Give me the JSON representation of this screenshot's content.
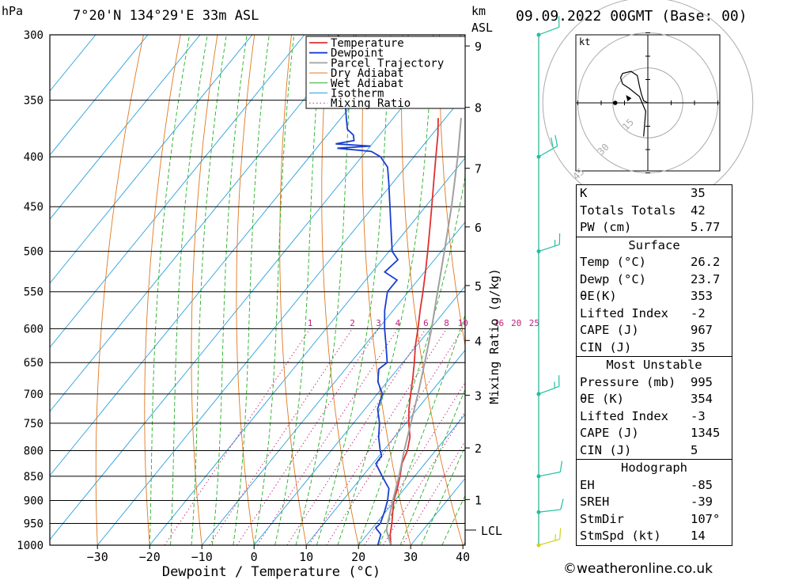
{
  "header": {
    "unit_hpa": "hPa",
    "location": "7°20'N 134°29'E 33m ASL",
    "unit_km": "km",
    "unit_asl": "ASL",
    "datetime": "09.09.2022 00GMT (Base: 00)"
  },
  "credit": "©weatheronline.co.uk",
  "colors": {
    "temperature": "#e03030",
    "dewpoint": "#1a3ed0",
    "parcel": "#a0a0a0",
    "dry_adiabat": "#e07820",
    "wet_adiabat": "#22b022",
    "isotherm": "#2aa0e0",
    "mixing_ratio": "#c0207a",
    "wind": "#20c0a0"
  },
  "chart_data": {
    "type": "line",
    "xlabel": "Dewpoint / Temperature (°C)",
    "ylabel": "hPa",
    "xlim": [
      -40,
      40
    ],
    "ylim": [
      1000,
      300
    ],
    "x_ticks": [
      -30,
      -20,
      -10,
      0,
      10,
      20,
      30,
      40
    ],
    "pressure_levels": [
      300,
      350,
      400,
      450,
      500,
      550,
      600,
      650,
      700,
      750,
      800,
      850,
      900,
      950,
      1000
    ],
    "km_ticks": [
      {
        "label": "1",
        "p": 898
      },
      {
        "label": "2",
        "p": 795
      },
      {
        "label": "3",
        "p": 702
      },
      {
        "label": "4",
        "p": 617
      },
      {
        "label": "5",
        "p": 542
      },
      {
        "label": "6",
        "p": 472
      },
      {
        "label": "7",
        "p": 411
      },
      {
        "label": "8",
        "p": 356
      },
      {
        "label": "9",
        "p": 308
      }
    ],
    "lcl": {
      "label": "LCL",
      "p": 965
    },
    "mixing_ratio_axis_label": "Mixing Ratio (g/kg)",
    "mixing_ratios": [
      1,
      2,
      3,
      4,
      6,
      8,
      10,
      16,
      20,
      25
    ],
    "legend": [
      "Temperature",
      "Dewpoint",
      "Parcel Trajectory",
      "Dry Adiabat",
      "Wet Adiabat",
      "Isotherm",
      "Mixing Ratio"
    ],
    "legend_position": "top-right",
    "series": [
      {
        "name": "Temperature",
        "points": [
          [
            1000,
            26.2
          ],
          [
            975,
            24.4
          ],
          [
            950,
            23.0
          ],
          [
            925,
            21.4
          ],
          [
            900,
            19.8
          ],
          [
            875,
            18.6
          ],
          [
            850,
            17.2
          ],
          [
            825,
            15.6
          ],
          [
            800,
            14.6
          ],
          [
            775,
            13.0
          ],
          [
            750,
            10.6
          ],
          [
            725,
            8.4
          ],
          [
            700,
            6.4
          ],
          [
            675,
            4.4
          ],
          [
            650,
            2.2
          ],
          [
            625,
            -0.2
          ],
          [
            600,
            -2.4
          ],
          [
            575,
            -4.8
          ],
          [
            550,
            -7.2
          ],
          [
            525,
            -9.8
          ],
          [
            500,
            -12.6
          ],
          [
            475,
            -15.6
          ],
          [
            450,
            -18.8
          ],
          [
            425,
            -22.2
          ],
          [
            400,
            -25.8
          ],
          [
            380,
            -28.8
          ],
          [
            365,
            -31.4
          ]
        ]
      },
      {
        "name": "Dewpoint",
        "points": [
          [
            1000,
            23.7
          ],
          [
            975,
            22.6
          ],
          [
            960,
            20.6
          ],
          [
            950,
            20.8
          ],
          [
            925,
            19.8
          ],
          [
            900,
            18.6
          ],
          [
            875,
            17.0
          ],
          [
            850,
            13.8
          ],
          [
            825,
            10.6
          ],
          [
            810,
            10.5
          ],
          [
            800,
            9.4
          ],
          [
            775,
            7.0
          ],
          [
            750,
            5.0
          ],
          [
            725,
            2.4
          ],
          [
            700,
            1.0
          ],
          [
            680,
            -1.8
          ],
          [
            660,
            -3.6
          ],
          [
            650,
            -3.0
          ],
          [
            625,
            -5.8
          ],
          [
            600,
            -8.8
          ],
          [
            575,
            -11.6
          ],
          [
            550,
            -14.0
          ],
          [
            535,
            -14.0
          ],
          [
            525,
            -17.6
          ],
          [
            510,
            -17.0
          ],
          [
            500,
            -19.4
          ],
          [
            475,
            -23.0
          ],
          [
            450,
            -26.8
          ],
          [
            425,
            -30.8
          ],
          [
            410,
            -33.4
          ],
          [
            400,
            -36.4
          ],
          [
            395,
            -39.0
          ],
          [
            392,
            -46.0
          ],
          [
            390,
            -40.0
          ],
          [
            388,
            -47.0
          ],
          [
            385,
            -44.0
          ],
          [
            380,
            -45.0
          ],
          [
            375,
            -47.0
          ],
          [
            365,
            -49.0
          ],
          [
            355,
            -51.0
          ],
          [
            345,
            -54.0
          ],
          [
            335,
            -56.0
          ],
          [
            325,
            -58.5
          ],
          [
            315,
            -60.5
          ],
          [
            305,
            -62.5
          ],
          [
            300,
            -63.5
          ]
        ]
      },
      {
        "name": "Parcel Trajectory",
        "points": [
          [
            1000,
            26.2
          ],
          [
            965,
            23.0
          ],
          [
            950,
            22.2
          ],
          [
            900,
            19.6
          ],
          [
            850,
            17.0
          ],
          [
            800,
            14.0
          ],
          [
            750,
            11.0
          ],
          [
            700,
            7.8
          ],
          [
            650,
            4.2
          ],
          [
            600,
            0.2
          ],
          [
            550,
            -4.4
          ],
          [
            500,
            -9.4
          ],
          [
            450,
            -15.0
          ],
          [
            400,
            -21.6
          ],
          [
            365,
            -27.0
          ]
        ]
      }
    ],
    "wind_barbs": [
      {
        "p": 1000,
        "dir": 100,
        "kt": 15
      },
      {
        "p": 925,
        "dir": 120,
        "kt": 10
      },
      {
        "p": 850,
        "dir": 110,
        "kt": 10
      },
      {
        "p": 700,
        "dir": 90,
        "kt": 15
      },
      {
        "p": 500,
        "dir": 95,
        "kt": 15
      },
      {
        "p": 400,
        "dir": 70,
        "kt": 20
      },
      {
        "p": 300,
        "dir": 90,
        "kt": 10
      }
    ]
  },
  "hodograph": {
    "unit": "kt",
    "ring_labels": [
      "15",
      "30",
      "45"
    ],
    "trace": [
      [
        0,
        0
      ],
      [
        2,
        1
      ],
      [
        3,
        4
      ],
      [
        4,
        8
      ],
      [
        5,
        13
      ],
      [
        8,
        15
      ],
      [
        12,
        14
      ],
      [
        13,
        12
      ],
      [
        12,
        9
      ],
      [
        9,
        7
      ],
      [
        4,
        3
      ],
      [
        1,
        -4
      ],
      [
        2,
        -16
      ]
    ]
  },
  "indices": [
    {
      "label": "K",
      "value": "35"
    },
    {
      "label": "Totals Totals",
      "value": "42"
    },
    {
      "label": "PW (cm)",
      "value": "5.77"
    }
  ],
  "surface": {
    "title": "Surface",
    "rows": [
      {
        "label": "Temp (°C)",
        "value": "26.2"
      },
      {
        "label": "Dewp (°C)",
        "value": "23.7"
      },
      {
        "label": "θE(K)",
        "value": "353"
      },
      {
        "label": "Lifted Index",
        "value": "-2"
      },
      {
        "label": "CAPE (J)",
        "value": "967"
      },
      {
        "label": "CIN (J)",
        "value": "35"
      }
    ]
  },
  "most_unstable": {
    "title": "Most Unstable",
    "rows": [
      {
        "label": "Pressure (mb)",
        "value": "995"
      },
      {
        "label": "θE (K)",
        "value": "354"
      },
      {
        "label": "Lifted Index",
        "value": "-3"
      },
      {
        "label": "CAPE (J)",
        "value": "1345"
      },
      {
        "label": "CIN (J)",
        "value": "5"
      }
    ]
  },
  "hodograph_stats": {
    "title": "Hodograph",
    "rows": [
      {
        "label": "EH",
        "value": "-85"
      },
      {
        "label": "SREH",
        "value": "-39"
      },
      {
        "label": "StmDir",
        "value": "107°"
      },
      {
        "label": "StmSpd (kt)",
        "value": "14"
      }
    ]
  }
}
